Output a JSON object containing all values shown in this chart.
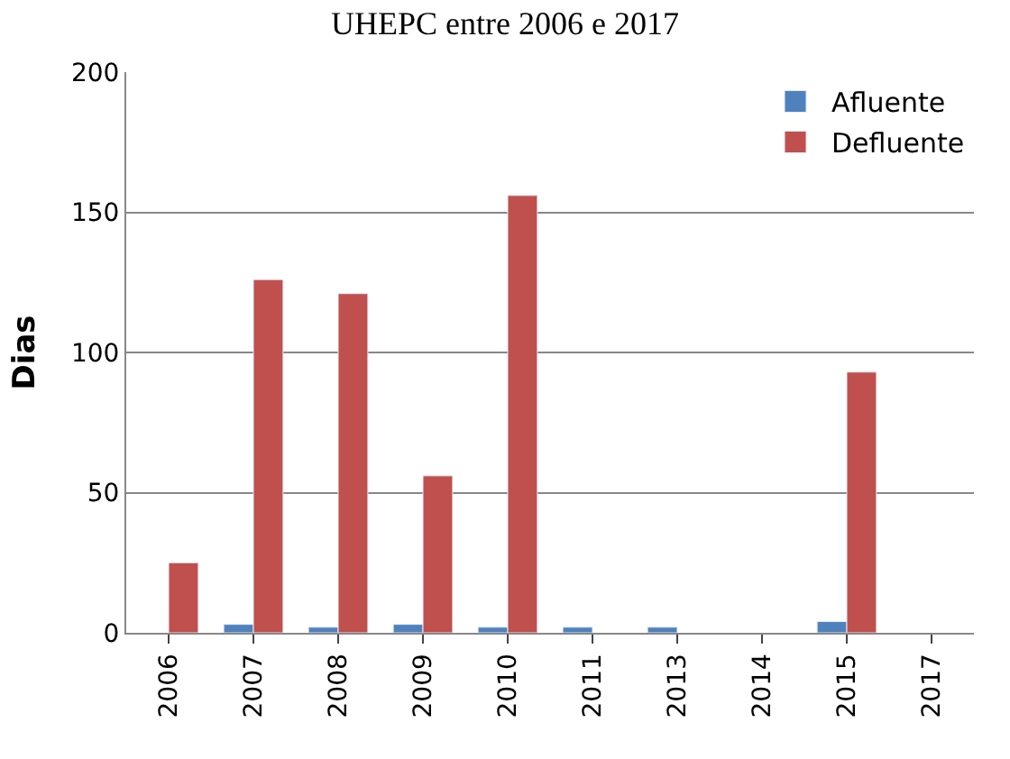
{
  "chart_data": {
    "type": "bar",
    "title": "UHEPC entre 2006 e 2017",
    "ylabel": "Dias",
    "categories": [
      "2006",
      "2007",
      "2008",
      "2009",
      "2010",
      "2011",
      "2013",
      "2014",
      "2015",
      "2017"
    ],
    "series": [
      {
        "name": "Afluente",
        "color": "#4f81bd",
        "values": [
          null,
          3,
          2,
          3,
          2,
          2,
          2,
          null,
          4,
          null
        ]
      },
      {
        "name": "Defluente",
        "color": "#c0504d",
        "values": [
          25,
          126,
          121,
          56,
          156,
          null,
          null,
          null,
          93,
          null
        ]
      }
    ],
    "ylim": [
      0,
      200
    ],
    "yticks": [
      0,
      50,
      100,
      150,
      200
    ],
    "grid": "y",
    "legend": "top right"
  }
}
